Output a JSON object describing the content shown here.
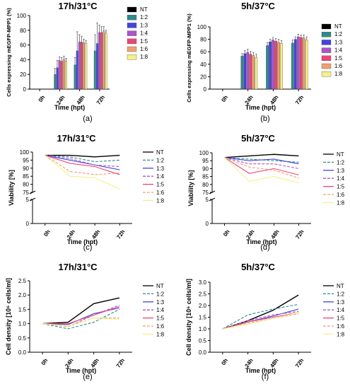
{
  "figure": {
    "series_colors": {
      "NT": "#000000",
      "1:2": "#2e8b8b",
      "1:3": "#4444dd",
      "1:4": "#aa55cc",
      "1:5": "#ee4477",
      "1:6": "#f0a070",
      "1:8": "#f5f088"
    }
  },
  "chart_data": [
    {
      "id": "a",
      "type": "bar",
      "panel_label": "(a)",
      "title": "17h/31°C",
      "xlabel": "Time (hpt)",
      "ylabel": "Cells expressing mEGFP-MPP1 (%)",
      "categories": [
        "0h",
        "24h",
        "48h",
        "72h"
      ],
      "ylim": [
        0,
        100
      ],
      "yticks": [
        "0",
        "20",
        "40",
        "60",
        "80",
        "100"
      ],
      "legend": "right",
      "series": [
        {
          "name": "NT",
          "values": [
            0,
            0,
            0,
            0
          ]
        },
        {
          "name": "1:2",
          "values": [
            0,
            20,
            33,
            52
          ]
        },
        {
          "name": "1:3",
          "values": [
            0,
            29,
            52,
            62
          ]
        },
        {
          "name": "1:4",
          "values": [
            0,
            39,
            64,
            77
          ]
        },
        {
          "name": "1:5",
          "values": [
            0,
            38,
            64,
            77
          ]
        },
        {
          "name": "1:6",
          "values": [
            0,
            40,
            63,
            79
          ]
        },
        {
          "name": "1:8",
          "values": [
            0,
            38,
            62,
            76
          ]
        }
      ],
      "errors": [
        [
          0,
          0,
          0,
          0
        ],
        [
          0,
          8,
          10,
          22
        ],
        [
          0,
          10,
          26,
          28
        ],
        [
          0,
          5,
          10,
          10
        ],
        [
          0,
          5,
          8,
          8
        ],
        [
          0,
          5,
          5,
          6
        ],
        [
          0,
          4,
          4,
          4
        ]
      ]
    },
    {
      "id": "b",
      "type": "bar",
      "panel_label": "(b)",
      "title": "5h/37°C",
      "xlabel": "Time (hpt)",
      "ylabel": "Cells expressing mEGFP-MPP1 (%)",
      "categories": [
        "0h",
        "24h",
        "48h",
        "72h"
      ],
      "ylim": [
        0,
        100
      ],
      "yticks": [
        "0",
        "20",
        "40",
        "60",
        "80",
        "100"
      ],
      "legend": "right",
      "series": [
        {
          "name": "NT",
          "values": [
            0,
            0,
            0,
            0
          ]
        },
        {
          "name": "1:2",
          "values": [
            0,
            53,
            70,
            74
          ]
        },
        {
          "name": "1:3",
          "values": [
            0,
            57,
            76,
            80
          ]
        },
        {
          "name": "1:4",
          "values": [
            0,
            59,
            79,
            84
          ]
        },
        {
          "name": "1:5",
          "values": [
            0,
            56,
            77,
            83
          ]
        },
        {
          "name": "1:6",
          "values": [
            0,
            54,
            75,
            82
          ]
        },
        {
          "name": "1:8",
          "values": [
            0,
            51,
            73,
            79
          ]
        }
      ],
      "errors": [
        [
          0,
          0,
          0,
          0
        ],
        [
          0,
          4,
          5,
          5
        ],
        [
          0,
          5,
          4,
          4
        ],
        [
          0,
          5,
          4,
          4
        ],
        [
          0,
          5,
          4,
          4
        ],
        [
          0,
          5,
          5,
          5
        ],
        [
          0,
          5,
          5,
          5
        ]
      ]
    },
    {
      "id": "c",
      "type": "line",
      "panel_label": "(c)",
      "title": "17h/31°C",
      "xlabel": "Time (hpt)",
      "ylabel": "Viability [%]",
      "categories": [
        "0h",
        "24h",
        "48h",
        "72h"
      ],
      "broken_axis": true,
      "upper_range": [
        75,
        100
      ],
      "upper_ticks": [
        "75",
        "80",
        "85",
        "90",
        "95",
        "100"
      ],
      "lower_range": [
        0,
        5
      ],
      "lower_ticks": [
        "0",
        "5"
      ],
      "legend": "right",
      "series": [
        {
          "name": "NT",
          "values": [
            98,
            98,
            97,
            98
          ]
        },
        {
          "name": "1:2",
          "values": [
            98,
            97,
            94,
            95
          ]
        },
        {
          "name": "1:3",
          "values": [
            98,
            95,
            92,
            89
          ]
        },
        {
          "name": "1:4",
          "values": [
            98,
            96,
            92,
            91
          ]
        },
        {
          "name": "1:5",
          "values": [
            98,
            93,
            91,
            86
          ]
        },
        {
          "name": "1:6",
          "values": [
            98,
            88,
            86,
            87
          ]
        },
        {
          "name": "1:8",
          "values": [
            98,
            85,
            84,
            77
          ]
        }
      ]
    },
    {
      "id": "d",
      "type": "line",
      "panel_label": "(d)",
      "title": "5h/37°C",
      "xlabel": "Time (hpt)",
      "ylabel": "Viability [%]",
      "categories": [
        "0h",
        "24h",
        "48h",
        "72h"
      ],
      "broken_axis": true,
      "upper_range": [
        75,
        100
      ],
      "upper_ticks": [
        "75",
        "80",
        "85",
        "90",
        "95",
        "100"
      ],
      "lower_range": [
        0,
        5
      ],
      "lower_ticks": [
        "0",
        "5"
      ],
      "legend": "right",
      "series": [
        {
          "name": "NT",
          "values": [
            97,
            98,
            99,
            98
          ]
        },
        {
          "name": "1:2",
          "values": [
            97,
            96,
            95,
            94
          ]
        },
        {
          "name": "1:3",
          "values": [
            97,
            95,
            96,
            93
          ]
        },
        {
          "name": "1:4",
          "values": [
            97,
            93,
            93,
            90
          ]
        },
        {
          "name": "1:5",
          "values": [
            97,
            87,
            90,
            86
          ]
        },
        {
          "name": "1:6",
          "values": [
            97,
            91,
            89,
            84
          ]
        },
        {
          "name": "1:8",
          "values": [
            97,
            82,
            85,
            81
          ]
        }
      ]
    },
    {
      "id": "e",
      "type": "line",
      "panel_label": "(e)",
      "title": "17h/31°C",
      "xlabel": "Time (hpt)",
      "ylabel": "Cell density [10⁶ cells/ml]",
      "categories": [
        "0h",
        "24h",
        "48h",
        "72h"
      ],
      "ylim": [
        0,
        2.5
      ],
      "yticks": [
        "0.0",
        "0.5",
        "1.0",
        "1.5",
        "2.0",
        "2.5"
      ],
      "legend": "right",
      "series": [
        {
          "name": "NT",
          "values": [
            1.0,
            1.05,
            1.7,
            1.9
          ]
        },
        {
          "name": "1:2",
          "values": [
            1.0,
            0.82,
            1.05,
            1.5
          ]
        },
        {
          "name": "1:3",
          "values": [
            1.0,
            0.97,
            1.35,
            1.55
          ]
        },
        {
          "name": "1:4",
          "values": [
            1.0,
            0.9,
            1.3,
            1.65
          ]
        },
        {
          "name": "1:5",
          "values": [
            1.0,
            1.0,
            1.3,
            1.6
          ]
        },
        {
          "name": "1:6",
          "values": [
            1.0,
            0.9,
            1.2,
            1.2
          ]
        },
        {
          "name": "1:8",
          "values": [
            1.0,
            0.92,
            1.2,
            1.15
          ]
        }
      ]
    },
    {
      "id": "f",
      "type": "line",
      "panel_label": "(f)",
      "title": "5h/37°C",
      "xlabel": "Time (hpt)",
      "ylabel": "Cell density [10⁶ cells/ml]",
      "categories": [
        "0h",
        "24h",
        "48h",
        "72h"
      ],
      "ylim": [
        0,
        3.0
      ],
      "yticks": [
        "0.0",
        "0.5",
        "1.0",
        "1.5",
        "2.0",
        "2.5",
        "3.0"
      ],
      "legend": "right",
      "series": [
        {
          "name": "NT",
          "values": [
            1.0,
            1.35,
            1.8,
            2.45
          ]
        },
        {
          "name": "1:2",
          "values": [
            1.0,
            1.6,
            1.85,
            2.05
          ]
        },
        {
          "name": "1:3",
          "values": [
            1.0,
            1.3,
            1.55,
            1.85
          ]
        },
        {
          "name": "1:4",
          "values": [
            1.0,
            1.35,
            1.6,
            1.75
          ]
        },
        {
          "name": "1:5",
          "values": [
            1.0,
            1.3,
            1.5,
            1.7
          ]
        },
        {
          "name": "1:6",
          "values": [
            1.0,
            1.25,
            1.45,
            1.65
          ]
        },
        {
          "name": "1:8",
          "values": [
            1.0,
            1.2,
            1.45,
            1.7
          ]
        }
      ]
    }
  ]
}
